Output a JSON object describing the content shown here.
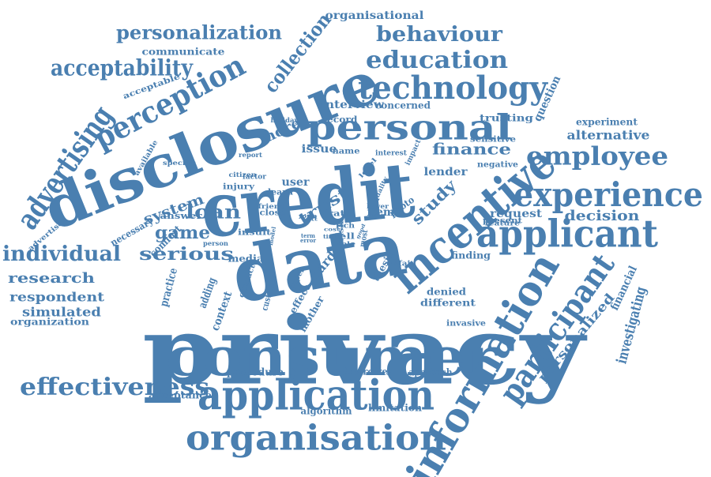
{
  "color": "#4a7fb0",
  "words": [
    "privacy",
    "consumer",
    "credit",
    "data",
    "disclosure",
    "information",
    "application",
    "organisation",
    "incentive",
    "applicant",
    "participant",
    "experience",
    "personal",
    "technology",
    "effectiveness",
    "perception",
    "advertising",
    "employee",
    "individual",
    "acceptability",
    "education",
    "behaviour",
    "personalization",
    "collection",
    "finance",
    "serious",
    "system",
    "loan",
    "game",
    "research",
    "respondent",
    "simulated",
    "organization",
    "decision",
    "request",
    "alternative",
    "investigating",
    "personalized",
    "financial",
    "experiment",
    "trust",
    "study",
    "lender",
    "trusting",
    "question",
    "interview",
    "concerned",
    "organisational",
    "communicate",
    "acceptable",
    "practice",
    "adding",
    "context",
    "contact",
    "customer",
    "mother",
    "effect",
    "card",
    "thesis",
    "denied",
    "different",
    "invasive",
    "procedure",
    "borrower",
    "approach",
    "acceptance",
    "algorithm",
    "limitation",
    "more",
    "issue",
    "record",
    "interest",
    "user",
    "learn",
    "answer",
    "necessary",
    "comfort",
    "insult",
    "media",
    "person",
    "finding",
    "item",
    "photo",
    "feature",
    "present",
    "negative",
    "sensitive",
    "impact",
    "report",
    "specific",
    "holiday",
    "citizen",
    "factor",
    "injury",
    "friend",
    "close",
    "rate",
    "level",
    "quality",
    "advertiser",
    "available",
    "name",
    "risk",
    "tell",
    "good",
    "lower",
    "form",
    "model",
    "most",
    "term",
    "error",
    "unfair",
    "paper",
    "rich",
    "cost",
    "role",
    "text",
    "time"
  ]
}
